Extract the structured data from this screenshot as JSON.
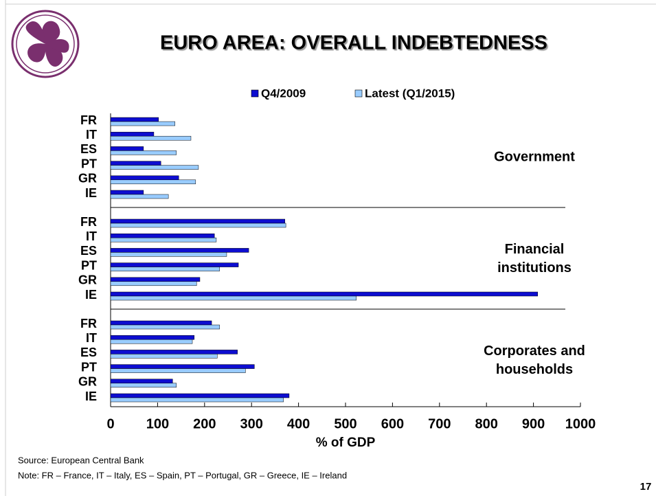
{
  "chart_data": {
    "type": "bar",
    "orientation": "horizontal",
    "title": "EURO AREA: OVERALL INDEBTEDNESS",
    "series": [
      {
        "name": "Q4/2009",
        "color": "#0d0dd0"
      },
      {
        "name": "Latest (Q1/2015)",
        "color": "#99ccff"
      }
    ],
    "groups": [
      {
        "label": [
          "Government"
        ],
        "categories": [
          "FR",
          "IT",
          "ES",
          "PT",
          "GR",
          "IE"
        ],
        "values": [
          [
            102,
            92,
            70,
            107,
            145,
            70
          ],
          [
            137,
            171,
            140,
            187,
            181,
            123
          ]
        ]
      },
      {
        "label": [
          "Financial",
          "institutions"
        ],
        "categories": [
          "FR",
          "IT",
          "ES",
          "PT",
          "GR",
          "IE"
        ],
        "values": [
          [
            371,
            221,
            294,
            272,
            190,
            909
          ],
          [
            373,
            225,
            247,
            232,
            183,
            523
          ]
        ]
      },
      {
        "label": [
          "Corporates and",
          "households"
        ],
        "categories": [
          "FR",
          "IT",
          "ES",
          "PT",
          "GR",
          "IE"
        ],
        "values": [
          [
            215,
            178,
            270,
            306,
            132,
            380
          ],
          [
            232,
            174,
            227,
            287,
            140,
            368
          ]
        ]
      }
    ],
    "xlabel": "% of GDP",
    "xlim": [
      0,
      1000
    ],
    "xticks": [
      0,
      100,
      200,
      300,
      400,
      500,
      600,
      700,
      800,
      900,
      1000
    ],
    "source": "Source: European Central Bank",
    "note": "Note: FR – France, IT – Italy, ES – Spain, PT – Portugal, GR – Greece, IE – Ireland",
    "page_number": "17"
  }
}
